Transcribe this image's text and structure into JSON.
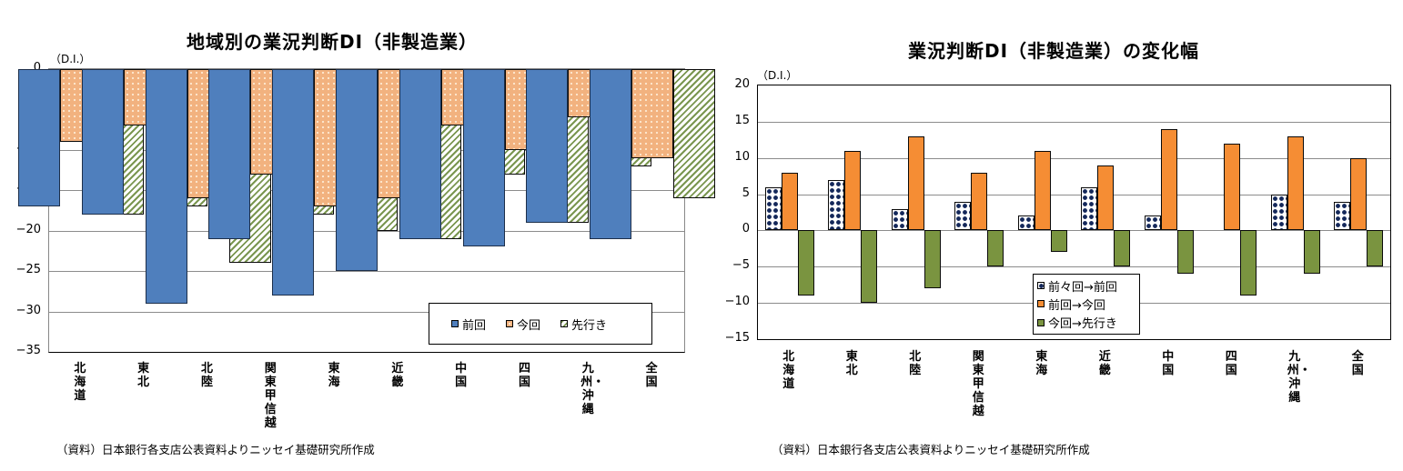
{
  "chart_data": [
    {
      "type": "bar",
      "title": "地域別の業況判断DI（非製造業）",
      "xlabel": "",
      "ylabel": "（D.I.）",
      "ylim": [
        -35,
        0
      ],
      "yticks": [
        0,
        -5,
        -10,
        -15,
        -20,
        -25,
        -30,
        -35
      ],
      "grid": true,
      "legend_position": "bottom-right inside",
      "categories": [
        "北海道",
        "東北",
        "北陸",
        "関東甲信越",
        "東海",
        "近畿",
        "中国",
        "四国",
        "九州・沖縄",
        "全国"
      ],
      "series": [
        {
          "name": "前回",
          "color": "#4f7fbd",
          "values": [
            -17,
            -18,
            -29,
            -21,
            -28,
            -25,
            -21,
            -22,
            -19,
            -21
          ]
        },
        {
          "name": "今回",
          "color": "#f2b27f",
          "values": [
            -9,
            -7,
            -16,
            -13,
            -17,
            -16,
            -7,
            -10,
            -6,
            -11
          ]
        },
        {
          "name": "先行き",
          "color": "#7a9650",
          "values": [
            -18,
            -17,
            -24,
            -18,
            -20,
            -21,
            -13,
            -19,
            -12,
            -16
          ]
        }
      ],
      "source": "（資料）日本銀行各支店公表資料よりニッセイ基礎研究所作成"
    },
    {
      "type": "bar",
      "title": "業況判断DI（非製造業）の変化幅",
      "xlabel": "",
      "ylabel": "（D.I.）",
      "ylim": [
        -15,
        20
      ],
      "yticks": [
        20,
        15,
        10,
        5,
        0,
        -5,
        -10,
        -15
      ],
      "grid": true,
      "legend_position": "bottom-left inside",
      "categories": [
        "北海道",
        "東北",
        "北陸",
        "関東甲信越",
        "東海",
        "近畿",
        "中国",
        "四国",
        "九州・沖縄",
        "全国"
      ],
      "series": [
        {
          "name": "前々回→前回",
          "color": "#14285a",
          "values": [
            6,
            7,
            3,
            4,
            2,
            6,
            2,
            0,
            5,
            4
          ]
        },
        {
          "name": "前回→今回",
          "color": "#f58d34",
          "values": [
            8,
            11,
            13,
            8,
            11,
            9,
            14,
            12,
            13,
            10
          ]
        },
        {
          "name": "今回→先行き",
          "color": "#7a9440",
          "values": [
            -9,
            -10,
            -8,
            -5,
            -3,
            -5,
            -6,
            -9,
            -6,
            -5
          ]
        }
      ],
      "source": "（資料）日本銀行各支店公表資料よりニッセイ基礎研究所作成"
    }
  ],
  "left": {
    "title": "地域別の業況判断DI（非製造業）",
    "unit": "（D.I.）",
    "source": "（資料）日本銀行各支店公表資料よりニッセイ基礎研究所作成"
  },
  "right": {
    "title": "業況判断DI（非製造業）の変化幅",
    "unit": "（D.I.）",
    "source": "（資料）日本銀行各支店公表資料よりニッセイ基礎研究所作成"
  }
}
